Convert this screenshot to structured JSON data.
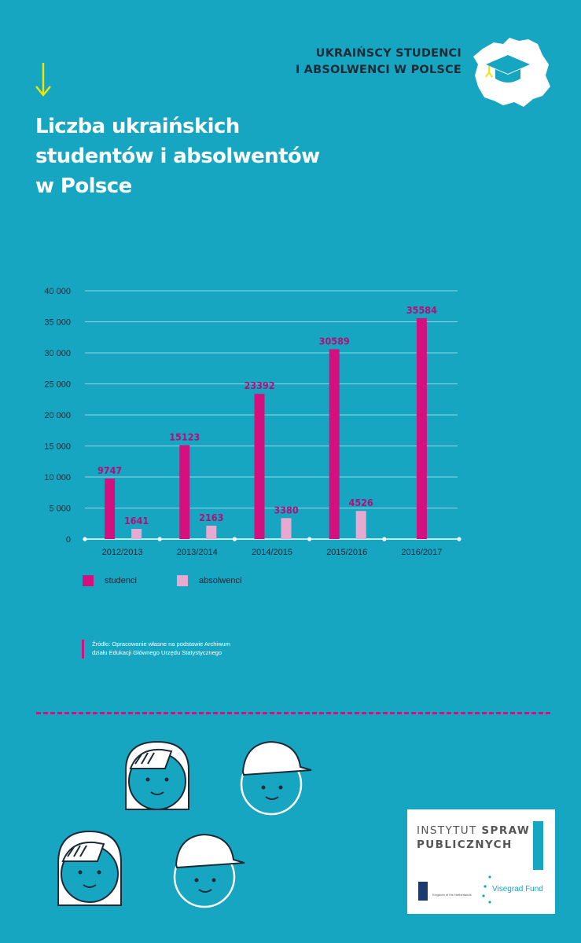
{
  "header": {
    "title_line1": "UKRAIŃSCY STUDENCI",
    "title_line2": "I ABSOLWENCI W POLSCE"
  },
  "title": {
    "line1": "Liczba ukraińskich",
    "line2": "studentów i absolwentów",
    "line3": "w Polsce"
  },
  "chart_data": {
    "type": "bar",
    "categories": [
      "2012/2013",
      "2013/2014",
      "2014/2015",
      "2015/2016",
      "2016/2017"
    ],
    "series": [
      {
        "name": "studenci",
        "color": "#d4107e",
        "values": [
          9747,
          15123,
          23392,
          30589,
          35584
        ]
      },
      {
        "name": "absolwenci",
        "color": "#e6a9cf",
        "values": [
          1641,
          2163,
          3380,
          4526,
          null
        ]
      }
    ],
    "y_ticks": [
      "40 000",
      "35 000",
      "30 000",
      "25 000",
      "20 000",
      "15 000",
      "10 000",
      "5 000",
      "0"
    ],
    "ylim": [
      0,
      40000
    ],
    "grid": true,
    "legend_position": "bottom-left",
    "value_label_color": "#b0107a"
  },
  "legend": {
    "studenci": "studenci",
    "absolwenci": "absolwenci"
  },
  "source": {
    "line1": "Źródło: Opracowanie własne na podstawie Archiwum",
    "line2": "działu Edukacji Głównego Urzędu Statystycznego"
  },
  "partners": {
    "isp_word1": "INSTYTUT",
    "isp_word2": "SPRAW",
    "isp_word3": "PUBLICZNYCH",
    "nl_label": "Kingdom of the Netherlands",
    "vf_label": "Visegrad Fund"
  },
  "colors": {
    "background": "#17a6c2",
    "accent_magenta": "#d4107e",
    "accent_pink": "#e6a9cf",
    "arrow_yellow": "#f2e500"
  },
  "icons": [
    "down-arrow-icon",
    "poland-map-graduation-cap-icon",
    "student-face-icon",
    "graduate-face-icon"
  ]
}
